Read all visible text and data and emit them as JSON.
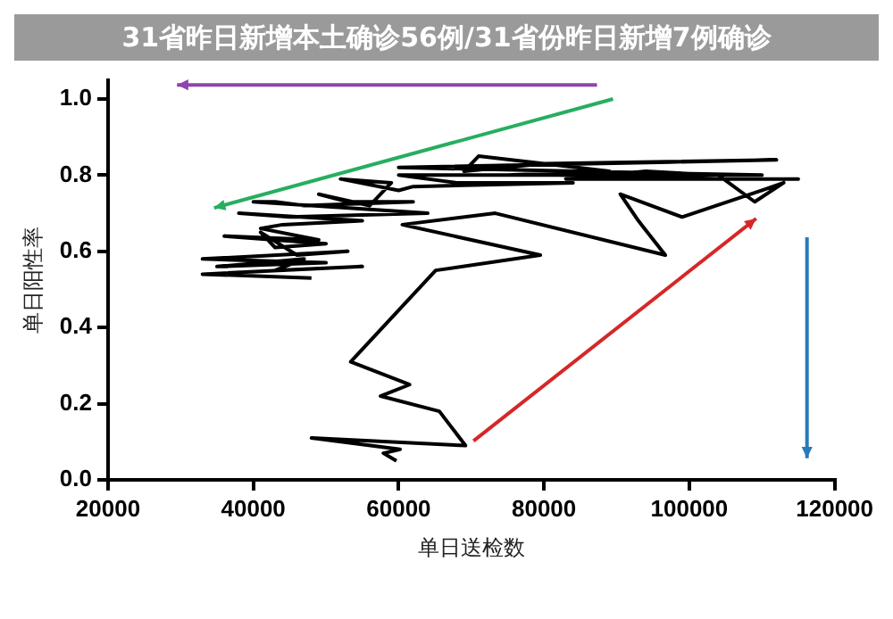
{
  "chart_data": {
    "type": "line",
    "title": "31省昨日新增本土确诊56例/31省份昨日新增7例确诊",
    "xlabel": "单日送检数",
    "ylabel": "单日阳性率",
    "xlim": [
      20000,
      120000
    ],
    "xticks": [
      20000,
      40000,
      60000,
      80000,
      100000,
      120000
    ],
    "ylim": [
      0,
      1.05
    ],
    "yticks": [
      {
        "value": 0,
        "label": "0.0"
      },
      {
        "value": 0.2,
        "label": "0.2"
      },
      {
        "value": 0.4,
        "label": "0.4"
      },
      {
        "value": 0.6,
        "label": "0.6"
      },
      {
        "value": 0.8,
        "label": "0.8"
      },
      {
        "value": 1,
        "label": "1.0"
      }
    ],
    "grid": false,
    "legend": false,
    "marker": "none",
    "line_style": "solid",
    "series": [
      {
        "color": "#000000",
        "x": [
          59700,
          57900,
          60200,
          48000,
          69200,
          65600,
          57500,
          61500,
          53400,
          65100,
          79500,
          60500,
          73300,
          96700,
          93000,
          90500,
          99000,
          110000,
          113000,
          109000,
          104000,
          94000,
          83000,
          115000,
          104000,
          82000,
          75000,
          89000,
          80000,
          71000,
          69000,
          80000,
          112000,
          60000,
          110000,
          60000,
          68000,
          84000,
          62000,
          60000,
          52000,
          59000,
          56000,
          49000,
          53000,
          62000,
          47000,
          43000,
          40000,
          64000,
          45000,
          38000,
          55000,
          44000,
          41000,
          49000,
          36000,
          50000,
          43000,
          41000,
          46000,
          53000,
          33000,
          50000,
          35000,
          47000,
          43000,
          55000,
          33000,
          48000
        ],
        "values": [
          0.05,
          0.07,
          0.08,
          0.11,
          0.09,
          0.18,
          0.22,
          0.25,
          0.31,
          0.55,
          0.59,
          0.67,
          0.7,
          0.59,
          0.68,
          0.75,
          0.69,
          0.76,
          0.78,
          0.73,
          0.8,
          0.81,
          0.79,
          0.79,
          0.79,
          0.8,
          0.8,
          0.81,
          0.83,
          0.85,
          0.81,
          0.83,
          0.84,
          0.82,
          0.8,
          0.8,
          0.78,
          0.78,
          0.77,
          0.76,
          0.79,
          0.78,
          0.72,
          0.75,
          0.73,
          0.73,
          0.72,
          0.73,
          0.73,
          0.7,
          0.69,
          0.7,
          0.68,
          0.67,
          0.66,
          0.63,
          0.64,
          0.62,
          0.61,
          0.65,
          0.59,
          0.6,
          0.58,
          0.57,
          0.56,
          0.58,
          0.55,
          0.56,
          0.54,
          0.53
        ]
      }
    ]
  }
}
